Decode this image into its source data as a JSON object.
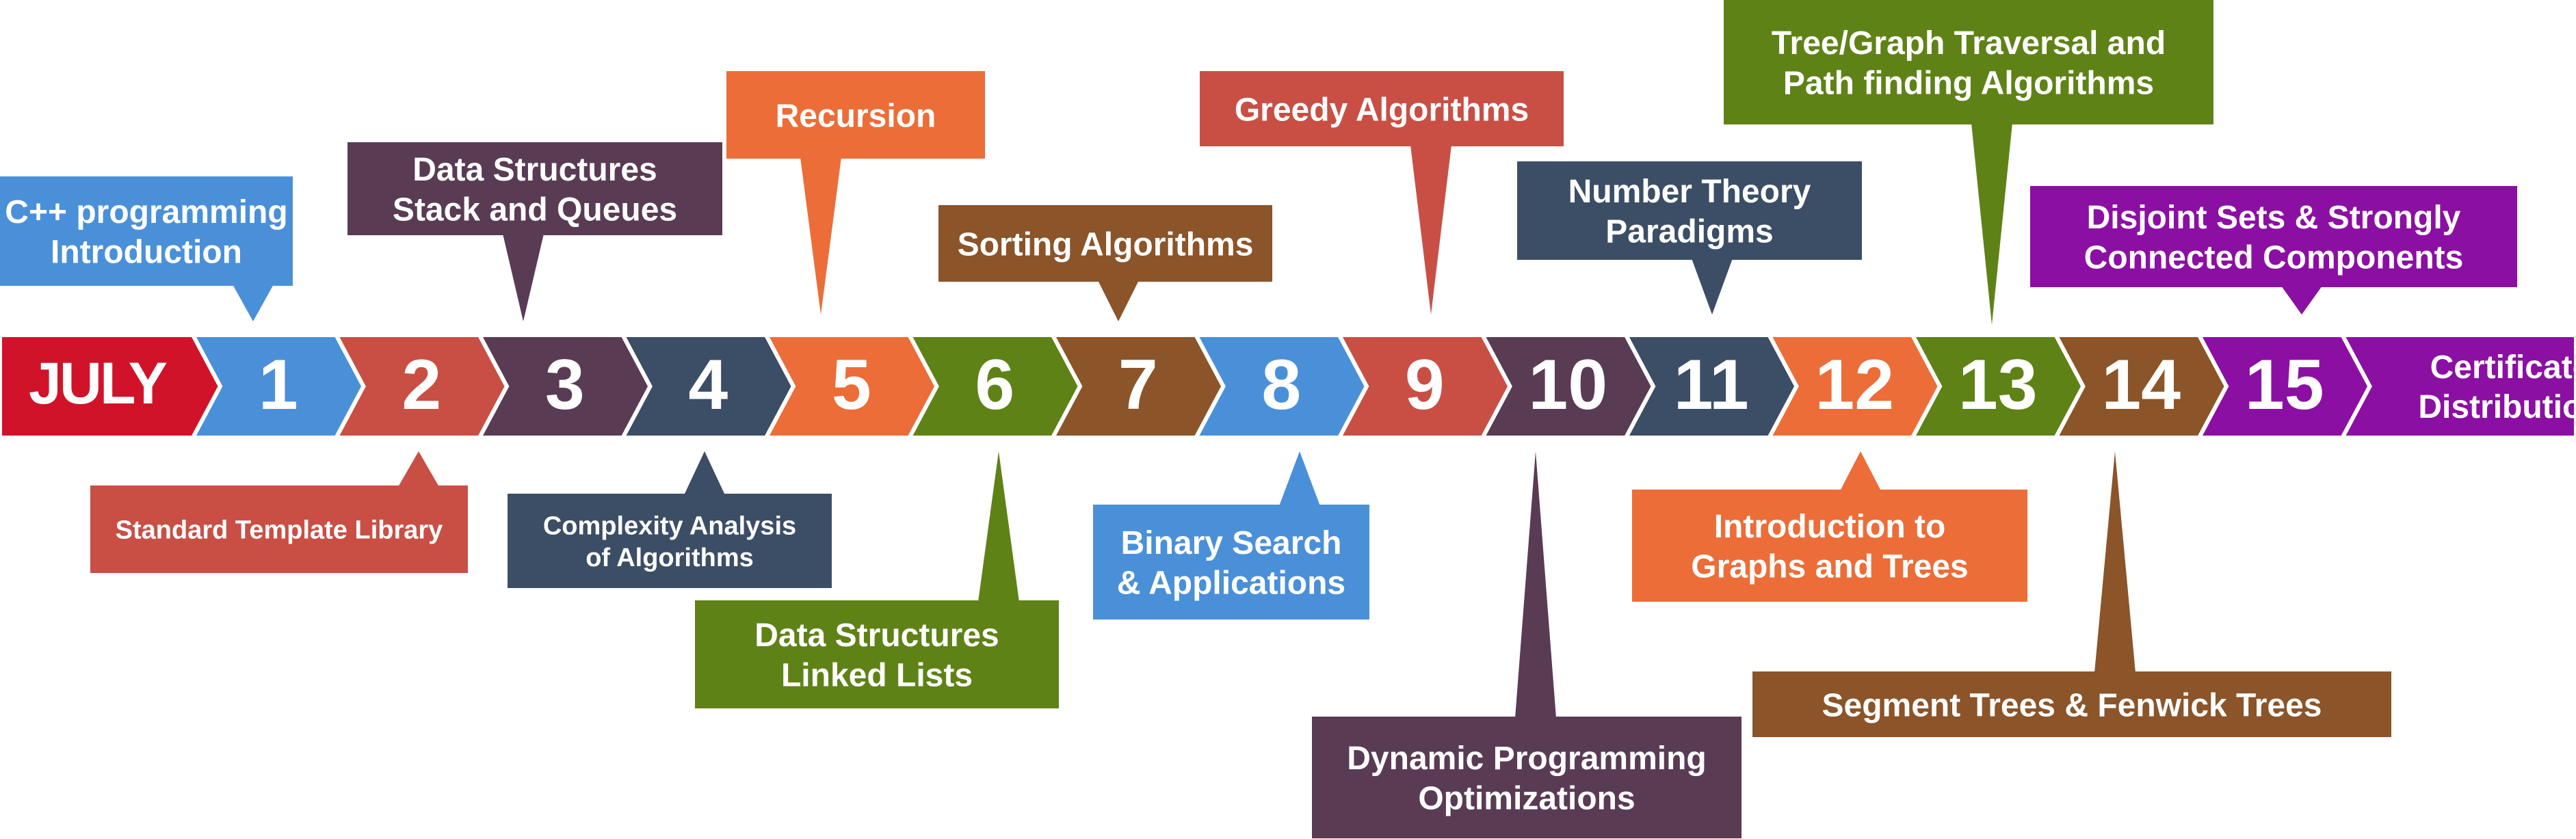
{
  "start_label": "JULY",
  "end_label": [
    "Certificate",
    "Distribution"
  ],
  "steps": [
    {
      "number": "1",
      "color": "#4a90d9",
      "topic": [
        "C++  programming",
        "Introduction"
      ],
      "side": "top"
    },
    {
      "number": "2",
      "color": "#c94f45",
      "topic": [
        "Standard Template Library"
      ],
      "side": "bottom"
    },
    {
      "number": "3",
      "color": "#5a3b54",
      "topic": [
        "Data Structures",
        "Stack and Queues"
      ],
      "side": "top"
    },
    {
      "number": "4",
      "color": "#3b4e66",
      "topic": [
        "Complexity Analysis",
        "of Algorithms"
      ],
      "side": "bottom"
    },
    {
      "number": "5",
      "color": "#ec6d38",
      "topic": [
        "Recursion"
      ],
      "side": "top"
    },
    {
      "number": "6",
      "color": "#5f8217",
      "topic": [
        "Data Structures",
        "Linked Lists"
      ],
      "side": "bottom"
    },
    {
      "number": "7",
      "color": "#8b5429",
      "topic": [
        "Sorting Algorithms"
      ],
      "side": "top"
    },
    {
      "number": "8",
      "color": "#4a90d9",
      "topic": [
        "Binary Search",
        "& Applications"
      ],
      "side": "bottom"
    },
    {
      "number": "9",
      "color": "#c94f45",
      "topic": [
        "Greedy Algorithms"
      ],
      "side": "top"
    },
    {
      "number": "10",
      "color": "#5a3b54",
      "topic": [
        "Dynamic Programming",
        "Optimizations"
      ],
      "side": "bottom"
    },
    {
      "number": "11",
      "color": "#3b4e66",
      "topic": [
        "Number Theory",
        "Paradigms"
      ],
      "side": "top"
    },
    {
      "number": "12",
      "color": "#ec6d38",
      "topic": [
        "Introduction to",
        "Graphs and Trees"
      ],
      "side": "bottom"
    },
    {
      "number": "13",
      "color": "#5f8217",
      "topic": [
        "Tree/Graph Traversal and",
        "Path finding Algorithms"
      ],
      "side": "top"
    },
    {
      "number": "14",
      "color": "#8b5429",
      "topic": [
        "Segment Trees & Fenwick Trees"
      ],
      "side": "bottom"
    },
    {
      "number": "15",
      "color": "#8c0fa3",
      "topic": [
        "Disjoint Sets & Strongly",
        "Connected Components"
      ],
      "side": "top"
    }
  ],
  "colors": {
    "start": "#d1132a",
    "end": "#8c0fa3",
    "text": "#ffffff"
  }
}
